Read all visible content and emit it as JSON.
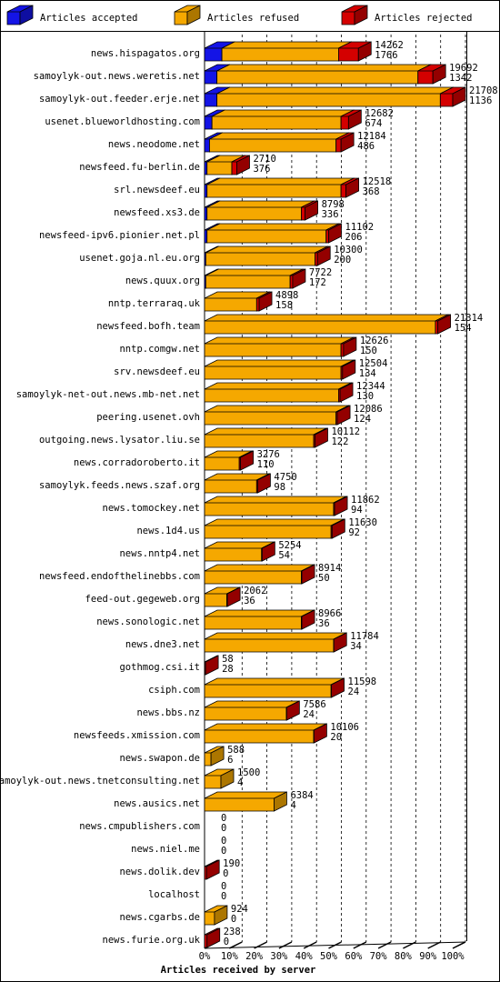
{
  "chart_data": {
    "type": "bar3d",
    "orientation": "horizontal",
    "stacked": true,
    "x_label": "Articles received by server",
    "categories": [
      "news.hispagatos.org",
      "samoylyk-out.news.weretis.net",
      "samoylyk-out.feeder.erje.net",
      "usenet.blueworldhosting.com",
      "news.neodome.net",
      "newsfeed.fu-berlin.de",
      "srl.newsdeef.eu",
      "newsfeed.xs3.de",
      "newsfeed-ipv6.pionier.net.pl",
      "usenet.goja.nl.eu.org",
      "news.quux.org",
      "nntp.terraraq.uk",
      "newsfeed.bofh.team",
      "nntp.comgw.net",
      "srv.newsdeef.eu",
      "samoylyk-net-out.news.mb-net.net",
      "peering.usenet.ovh",
      "outgoing.news.lysator.liu.se",
      "news.corradoroberto.it",
      "samoylyk.feeds.news.szaf.org",
      "news.tomockey.net",
      "news.1d4.us",
      "news.nntp4.net",
      "newsfeed.endofthelinebbs.com",
      "feed-out.gegeweb.org",
      "news.sonologic.net",
      "news.dne3.net",
      "gothmog.csi.it",
      "csiph.com",
      "news.bbs.nz",
      "newsfeeds.xmission.com",
      "news.swapon.de",
      "samoylyk-out.news.tnetconsulting.net",
      "news.ausics.net",
      "news.cmpublishers.com",
      "news.niel.me",
      "news.dolik.dev",
      "localhost",
      "news.cgarbs.de",
      "news.furie.org.uk"
    ],
    "series": [
      {
        "name": "Articles accepted",
        "color": "#1414e6",
        "values": [
          7,
          5,
          5,
          3,
          2,
          1,
          1,
          1,
          1,
          0.5,
          0.5,
          0,
          0,
          0,
          0,
          0,
          0,
          0,
          0,
          0,
          0,
          0,
          0,
          0,
          0,
          0,
          0,
          0,
          0,
          0,
          0,
          0,
          0,
          0,
          0,
          0,
          0,
          0,
          0,
          0
        ]
      },
      {
        "name": "Articles refused",
        "color": "#f5a800",
        "values": [
          47,
          81,
          90,
          52,
          51,
          10,
          54,
          38,
          48,
          44,
          34,
          21,
          93,
          55,
          55,
          54,
          53,
          44,
          14,
          21,
          52,
          51,
          23,
          39,
          9,
          39,
          52,
          0,
          51,
          33,
          44,
          2.6,
          6.6,
          28,
          0,
          0,
          0,
          0,
          4,
          0
        ]
      },
      {
        "name": "Articles rejected",
        "color": "#d40000",
        "values": [
          8,
          6,
          5,
          3,
          2,
          2,
          2,
          1.5,
          1,
          1,
          1,
          1,
          1,
          1,
          0.6,
          0.6,
          0.5,
          0.5,
          0.5,
          0.4,
          0.4,
          0.4,
          0.2,
          0.2,
          0.2,
          0.2,
          0.1,
          0.4,
          0.1,
          0.1,
          0.1,
          0,
          0,
          0,
          0,
          0,
          0.8,
          0,
          0,
          1
        ]
      }
    ],
    "row_numbers": [
      [
        14262,
        1766
      ],
      [
        19692,
        1342
      ],
      [
        21708,
        1136
      ],
      [
        12682,
        674
      ],
      [
        12184,
        486
      ],
      [
        2710,
        376
      ],
      [
        12518,
        368
      ],
      [
        8798,
        336
      ],
      [
        11102,
        206
      ],
      [
        10300,
        200
      ],
      [
        7722,
        172
      ],
      [
        4898,
        158
      ],
      [
        21314,
        154
      ],
      [
        12626,
        150
      ],
      [
        12504,
        134
      ],
      [
        12344,
        130
      ],
      [
        12086,
        124
      ],
      [
        10112,
        122
      ],
      [
        3276,
        110
      ],
      [
        4750,
        98
      ],
      [
        11862,
        94
      ],
      [
        11630,
        92
      ],
      [
        5254,
        54
      ],
      [
        8914,
        50
      ],
      [
        2062,
        36
      ],
      [
        8966,
        36
      ],
      [
        11784,
        34
      ],
      [
        58,
        28
      ],
      [
        11598,
        24
      ],
      [
        7586,
        24
      ],
      [
        10106,
        20
      ],
      [
        588,
        6
      ],
      [
        1500,
        4
      ],
      [
        6384,
        4
      ],
      [
        0,
        0
      ],
      [
        0,
        0
      ],
      [
        190,
        0
      ],
      [
        0,
        0
      ],
      [
        924,
        0
      ],
      [
        238,
        0
      ]
    ],
    "xlim": [
      0,
      100
    ],
    "xticks": [
      {
        "value": 0,
        "label": "0%"
      },
      {
        "value": 10,
        "label": "10%"
      },
      {
        "value": 20,
        "label": "20%"
      },
      {
        "value": 30,
        "label": "30%"
      },
      {
        "value": 40,
        "label": "40%"
      },
      {
        "value": 50,
        "label": "50%"
      },
      {
        "value": 60,
        "label": "60%"
      },
      {
        "value": 70,
        "label": "70%"
      },
      {
        "value": 80,
        "label": "80%"
      },
      {
        "value": 90,
        "label": "90%"
      },
      {
        "value": 100,
        "label": "100%"
      }
    ],
    "grid": true
  }
}
